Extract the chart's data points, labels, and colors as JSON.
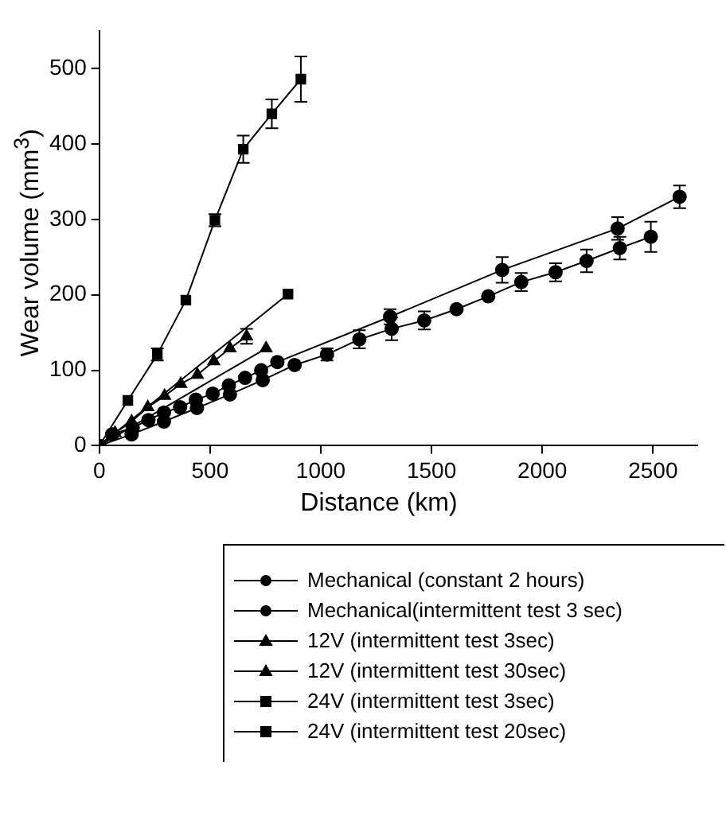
{
  "chart_data": {
    "type": "line",
    "xlabel": "Distance (km)",
    "ylabel": "Wear volume (mm$^{3}$)",
    "xlim": [
      0,
      2700
    ],
    "ylim": [
      0,
      550
    ],
    "xticks": [
      0,
      500,
      1000,
      1500,
      2000,
      2500
    ],
    "yticks": [
      0,
      100,
      200,
      300,
      400,
      500
    ],
    "grid": false,
    "legend": "bottom",
    "line_style": "solid",
    "series": [
      {
        "name": "Mechanical (constant 2 hours)",
        "color": "#000000",
        "marker": "circle",
        "x": [
          0,
          146,
          292,
          441,
          590,
          738,
          882,
          1028,
          1174,
          1320,
          1467,
          1613,
          1756,
          1905,
          2060,
          2200,
          2350,
          2490
        ],
        "values": [
          0,
          15,
          32,
          50,
          68,
          87,
          107,
          121,
          141,
          155,
          166,
          181,
          198,
          217,
          230,
          245,
          262,
          277
        ],
        "errors": [
          null,
          null,
          null,
          null,
          null,
          null,
          null,
          8,
          12,
          15,
          12,
          null,
          null,
          12,
          12,
          15,
          15,
          20
        ]
      },
      {
        "name": "Mechanical(intermittent test 3 sec)",
        "color": "#000000",
        "marker": "circle",
        "x": [
          0,
          58,
          151,
          222,
          292,
          365,
          436,
          512,
          585,
          658,
          731,
          804,
          1313,
          1819,
          2340,
          2620
        ],
        "values": [
          0,
          15,
          24,
          34,
          44,
          51,
          61,
          69,
          80,
          90,
          100,
          111,
          171,
          233,
          288,
          330
        ],
        "errors": [
          null,
          null,
          null,
          null,
          null,
          null,
          null,
          null,
          null,
          null,
          null,
          null,
          10,
          17,
          15,
          15
        ]
      },
      {
        "name": "12V (intermittent test 3sec)",
        "color": "#000000",
        "marker": "triangle",
        "x": [
          0,
          71,
          146,
          219,
          295,
          368,
          443,
          517,
          590,
          665
        ],
        "values": [
          0,
          17,
          32,
          51,
          66,
          82,
          94,
          112,
          129,
          145
        ],
        "errors": [
          null,
          null,
          null,
          null,
          null,
          null,
          null,
          null,
          null,
          10
        ]
      },
      {
        "name": "12V (intermittent test 30sec)",
        "color": "#000000",
        "marker": "triangle",
        "x": [
          0,
          753
        ],
        "values": [
          0,
          129
        ]
      },
      {
        "name": "24V (intermittent test 3sec)",
        "color": "#000000",
        "marker": "square",
        "x": [
          0,
          129,
          262,
          391,
          522,
          650,
          779,
          910
        ],
        "values": [
          0,
          60,
          121,
          193,
          299,
          393,
          440,
          486
        ],
        "errors": [
          null,
          null,
          8,
          null,
          8,
          18,
          19,
          30
        ]
      },
      {
        "name": "24V (intermittent test 20sec)",
        "color": "#000000",
        "marker": "square",
        "x": [
          0,
          852
        ],
        "values": [
          0,
          201
        ]
      }
    ]
  }
}
